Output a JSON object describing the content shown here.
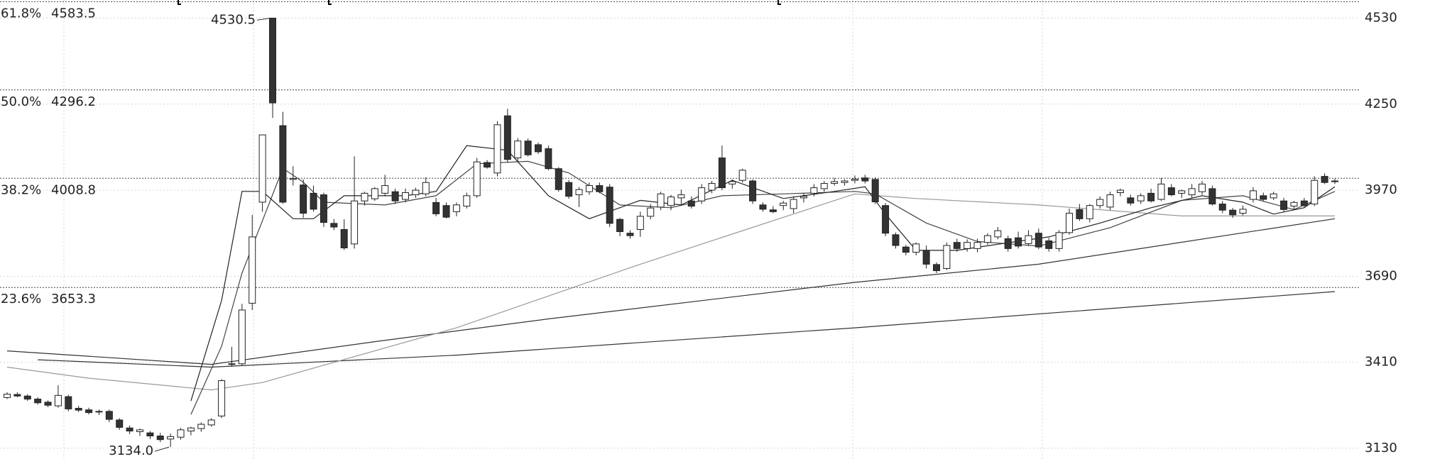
{
  "chart_data": {
    "type": "candlestick",
    "ylim": [
      3095,
      4589
    ],
    "yticks": [
      3130,
      3410,
      3690,
      3970,
      4250,
      4530
    ],
    "grid": true,
    "up_color": "#ffffff",
    "down_color": "#333333",
    "edge_color": "#222222",
    "ohlc": [
      [
        3295,
        3312,
        3290,
        3306
      ],
      [
        3305,
        3312,
        3296,
        3300
      ],
      [
        3300,
        3306,
        3284,
        3290
      ],
      [
        3290,
        3296,
        3272,
        3278
      ],
      [
        3280,
        3286,
        3264,
        3270
      ],
      [
        3268,
        3335,
        3262,
        3302
      ],
      [
        3298,
        3304,
        3250,
        3258
      ],
      [
        3260,
        3268,
        3248,
        3254
      ],
      [
        3255,
        3262,
        3240,
        3246
      ],
      [
        3248,
        3256,
        3238,
        3250
      ],
      [
        3250,
        3256,
        3215,
        3224
      ],
      [
        3222,
        3228,
        3190,
        3198
      ],
      [
        3196,
        3204,
        3176,
        3186
      ],
      [
        3184,
        3194,
        3170,
        3190
      ],
      [
        3180,
        3186,
        3160,
        3170
      ],
      [
        3170,
        3180,
        3150,
        3158
      ],
      [
        3160,
        3178,
        3134,
        3168
      ],
      [
        3166,
        3196,
        3158,
        3190
      ],
      [
        3186,
        3200,
        3172,
        3196
      ],
      [
        3194,
        3214,
        3184,
        3208
      ],
      [
        3206,
        3228,
        3200,
        3222
      ],
      [
        3235,
        3355,
        3228,
        3350
      ],
      [
        3403,
        3460,
        3395,
        3405
      ],
      [
        3405,
        3600,
        3400,
        3580
      ],
      [
        3602,
        3890,
        3580,
        3818
      ],
      [
        3931,
        4150,
        3900,
        4150
      ],
      [
        4530,
        4530.5,
        4205,
        4254
      ],
      [
        4180,
        4225,
        3925,
        3931
      ],
      [
        4005,
        4048,
        3985,
        4008
      ],
      [
        3987,
        4005,
        3880,
        3895
      ],
      [
        3960,
        3985,
        3900,
        3908
      ],
      [
        3955,
        3962,
        3850,
        3865
      ],
      [
        3862,
        3876,
        3840,
        3850
      ],
      [
        3842,
        3875,
        3775,
        3782
      ],
      [
        3795,
        4080,
        3780,
        3935
      ],
      [
        3935,
        3965,
        3920,
        3960
      ],
      [
        3942,
        3980,
        3935,
        3975
      ],
      [
        3960,
        4020,
        3950,
        3985
      ],
      [
        3965,
        3975,
        3925,
        3935
      ],
      [
        3940,
        3975,
        3930,
        3962
      ],
      [
        3955,
        3978,
        3945,
        3970
      ],
      [
        3958,
        4012,
        3950,
        3995
      ],
      [
        3930,
        3945,
        3885,
        3893
      ],
      [
        3920,
        3930,
        3878,
        3882
      ],
      [
        3900,
        3930,
        3885,
        3922
      ],
      [
        3918,
        3962,
        3910,
        3952
      ],
      [
        3952,
        4075,
        3945,
        4062
      ],
      [
        4060,
        4068,
        4040,
        4045
      ],
      [
        4026,
        4195,
        4015,
        4183
      ],
      [
        4212,
        4235,
        4060,
        4070
      ],
      [
        4075,
        4140,
        4060,
        4130
      ],
      [
        4130,
        4138,
        4080,
        4085
      ],
      [
        4118,
        4125,
        4088,
        4095
      ],
      [
        4105,
        4115,
        4035,
        4040
      ],
      [
        4040,
        4045,
        3965,
        3972
      ],
      [
        3995,
        4002,
        3942,
        3950
      ],
      [
        3955,
        3980,
        3915,
        3972
      ],
      [
        3965,
        3995,
        3955,
        3985
      ],
      [
        3985,
        3995,
        3960,
        3965
      ],
      [
        3980,
        3990,
        3850,
        3862
      ],
      [
        3875,
        3880,
        3820,
        3835
      ],
      [
        3830,
        3840,
        3812,
        3822
      ],
      [
        3842,
        3900,
        3818,
        3885
      ],
      [
        3885,
        3925,
        3875,
        3912
      ],
      [
        3915,
        3965,
        3905,
        3958
      ],
      [
        3920,
        3955,
        3905,
        3948
      ],
      [
        3945,
        3972,
        3920,
        3955
      ],
      [
        3935,
        3950,
        3910,
        3918
      ],
      [
        3935,
        3990,
        3925,
        3978
      ],
      [
        3970,
        4000,
        3960,
        3992
      ],
      [
        4075,
        4115,
        3970,
        3978
      ],
      [
        3990,
        4005,
        3975,
        3998
      ],
      [
        4002,
        4040,
        3995,
        4035
      ],
      [
        4000,
        4005,
        3925,
        3935
      ],
      [
        3922,
        3930,
        3900,
        3908
      ],
      [
        3906,
        3918,
        3895,
        3900
      ],
      [
        3920,
        3935,
        3905,
        3928
      ],
      [
        3910,
        3950,
        3895,
        3940
      ],
      [
        3945,
        3960,
        3930,
        3950
      ],
      [
        3960,
        3990,
        3950,
        3978
      ],
      [
        3975,
        4000,
        3965,
        3992
      ],
      [
        3992,
        4010,
        3985,
        3998
      ],
      [
        3995,
        4005,
        3985,
        4000
      ],
      [
        4002,
        4018,
        3992,
        4006
      ],
      [
        4010,
        4020,
        3992,
        4000
      ],
      [
        4005,
        4012,
        3925,
        3932
      ],
      [
        3920,
        3928,
        3820,
        3830
      ],
      [
        3825,
        3832,
        3780,
        3790
      ],
      [
        3785,
        3792,
        3758,
        3768
      ],
      [
        3768,
        3800,
        3758,
        3795
      ],
      [
        3774,
        3790,
        3715,
        3729
      ],
      [
        3728,
        3735,
        3700,
        3708
      ],
      [
        3715,
        3800,
        3710,
        3790
      ],
      [
        3800,
        3812,
        3770,
        3780
      ],
      [
        3780,
        3810,
        3770,
        3800
      ],
      [
        3780,
        3812,
        3768,
        3800
      ],
      [
        3800,
        3830,
        3792,
        3822
      ],
      [
        3818,
        3850,
        3810,
        3838
      ],
      [
        3812,
        3822,
        3770,
        3780
      ],
      [
        3815,
        3835,
        3780,
        3788
      ],
      [
        3796,
        3840,
        3788,
        3822
      ],
      [
        3830,
        3845,
        3778,
        3785
      ],
      [
        3805,
        3815,
        3770,
        3780
      ],
      [
        3780,
        3840,
        3770,
        3832
      ],
      [
        3832,
        3910,
        3825,
        3895
      ],
      [
        3907,
        3925,
        3870,
        3877
      ],
      [
        3877,
        3925,
        3865,
        3920
      ],
      [
        3920,
        3950,
        3910,
        3940
      ],
      [
        3915,
        3965,
        3905,
        3955
      ],
      [
        3962,
        3975,
        3950,
        3970
      ],
      [
        3945,
        3955,
        3920,
        3928
      ],
      [
        3935,
        3960,
        3925,
        3952
      ],
      [
        3960,
        3975,
        3930,
        3935
      ],
      [
        3940,
        4010,
        3935,
        3990
      ],
      [
        3978,
        3990,
        3950,
        3955
      ],
      [
        3960,
        3972,
        3945,
        3968
      ],
      [
        3955,
        3990,
        3945,
        3975
      ],
      [
        3965,
        4000,
        3955,
        3990
      ],
      [
        3975,
        3985,
        3920,
        3925
      ],
      [
        3925,
        3935,
        3895,
        3905
      ],
      [
        3905,
        3912,
        3880,
        3890
      ],
      [
        3895,
        3920,
        3888,
        3908
      ],
      [
        3940,
        3980,
        3930,
        3968
      ],
      [
        3952,
        3962,
        3935,
        3940
      ],
      [
        3945,
        3965,
        3938,
        3958
      ],
      [
        3935,
        3945,
        3900,
        3907
      ],
      [
        3918,
        3935,
        3905,
        3930
      ],
      [
        3935,
        3945,
        3915,
        3920
      ],
      [
        3925,
        4015,
        3918,
        4002
      ],
      [
        4015,
        4025,
        3990,
        3995
      ],
      [
        4000,
        4008,
        3990,
        3998
      ]
    ],
    "ma_lines": [
      {
        "color": "#333333",
        "x": [
          0,
          20,
          36,
          53,
          83,
          101,
          130
        ],
        "values": [
          3447,
          3403,
          3477,
          3551,
          3670,
          3729,
          3877
        ]
      },
      {
        "color": "#333333",
        "x": [
          3,
          20,
          44,
          83,
          130
        ],
        "values": [
          3418,
          3394,
          3433,
          3522,
          3640
        ]
      },
      {
        "color": "#999999",
        "x": [
          0,
          8,
          20,
          25,
          44,
          62,
          83,
          89,
          101,
          115,
          130
        ],
        "values": [
          3394,
          3358,
          3320,
          3344,
          3522,
          3729,
          3958,
          3943,
          3922,
          3886,
          3886
        ]
      },
      {
        "color": "#444444",
        "x": [
          18,
          21,
          23,
          27,
          29,
          31,
          37,
          42,
          46,
          51,
          55,
          60,
          65,
          70,
          76,
          83,
          85,
          90,
          95,
          101,
          108,
          115,
          121,
          126,
          130
        ],
        "values": [
          3240,
          3462,
          3700,
          4041,
          3996,
          3931,
          3922,
          3952,
          4056,
          4064,
          4026,
          3922,
          3913,
          3952,
          3958,
          3966,
          3958,
          3863,
          3803,
          3788,
          3848,
          3937,
          3952,
          3907,
          3966
        ]
      },
      {
        "color": "#222222",
        "x": [
          18,
          21,
          23,
          25,
          28,
          30,
          33,
          39,
          42,
          45,
          49,
          53,
          57,
          62,
          66,
          71,
          76,
          81,
          84,
          86,
          89,
          93,
          97,
          102,
          107,
          112,
          117,
          121,
          124,
          127,
          130
        ],
        "values": [
          3284,
          3611,
          3966,
          3966,
          3877,
          3877,
          3952,
          3952,
          3966,
          4115,
          4100,
          3952,
          3877,
          3937,
          3922,
          4002,
          3943,
          3966,
          3981,
          3892,
          3774,
          3774,
          3794,
          3818,
          3863,
          3913,
          3952,
          3931,
          3892,
          3913,
          3981
        ]
      }
    ],
    "fib_levels": [
      {
        "label": "61.8%",
        "value": 4583.5
      },
      {
        "label": "50.0%",
        "value": 4296.2
      },
      {
        "label": "38.2%",
        "value": 4008.8
      },
      {
        "label": "23.6%",
        "value": 3653.3
      }
    ],
    "extremes": [
      {
        "value": 4530.5,
        "label": "4530.5"
      },
      {
        "value": 3134,
        "label": "3134.0"
      }
    ]
  }
}
